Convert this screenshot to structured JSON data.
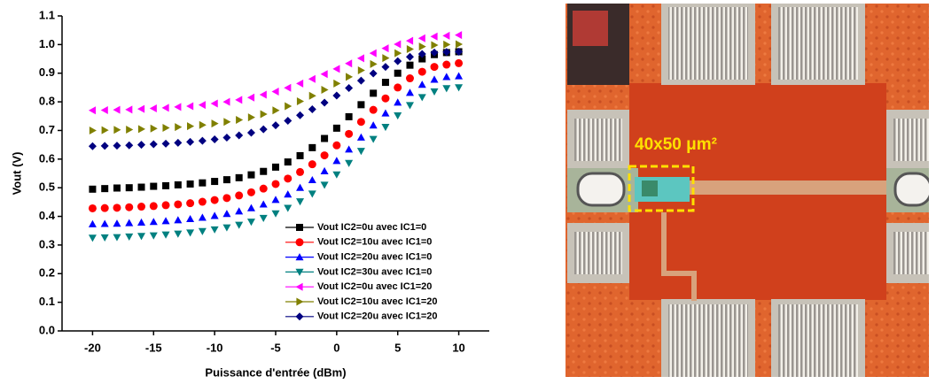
{
  "chart_data": {
    "type": "scatter",
    "xlabel": "Puissance d'entrée (dBm)",
    "ylabel": "Vout (V)",
    "x": [
      -20,
      -19,
      -18,
      -17,
      -16,
      -15,
      -14,
      -13,
      -12,
      -11,
      -10,
      -9,
      -8,
      -7,
      -6,
      -5,
      -4,
      -3,
      -2,
      -1,
      0,
      1,
      2,
      3,
      4,
      5,
      6,
      7,
      8,
      9,
      10
    ],
    "xlim": [
      -22.5,
      12.5
    ],
    "xticks": [
      -20,
      -15,
      -10,
      -5,
      0,
      5,
      10
    ],
    "ylim": [
      0,
      1.1
    ],
    "yticks": [
      {
        "value": 0,
        "label": "0.0"
      },
      0.1,
      0.2,
      0.3,
      0.4,
      0.5,
      0.6,
      0.7,
      0.8,
      0.9,
      {
        "value": 1,
        "label": "1.0"
      },
      1.1
    ],
    "legend": "lower-right",
    "series": [
      {
        "name": "Vout  IC2=0u avec IC1=0",
        "color": "#000000",
        "marker": "square",
        "values": [
          0.495,
          0.497,
          0.499,
          0.5,
          0.502,
          0.505,
          0.507,
          0.51,
          0.513,
          0.517,
          0.522,
          0.528,
          0.535,
          0.545,
          0.557,
          0.572,
          0.59,
          0.612,
          0.64,
          0.672,
          0.708,
          0.748,
          0.79,
          0.83,
          0.868,
          0.9,
          0.928,
          0.95,
          0.965,
          0.972,
          0.975
        ]
      },
      {
        "name": "Vout  IC2=10u avec IC1=0",
        "color": "#ff0000",
        "marker": "circle",
        "values": [
          0.428,
          0.429,
          0.43,
          0.432,
          0.434,
          0.436,
          0.439,
          0.442,
          0.446,
          0.451,
          0.457,
          0.464,
          0.473,
          0.484,
          0.497,
          0.513,
          0.532,
          0.555,
          0.582,
          0.613,
          0.648,
          0.688,
          0.73,
          0.772,
          0.812,
          0.85,
          0.882,
          0.905,
          0.922,
          0.93,
          0.935
        ]
      },
      {
        "name": "Vout  IC2=20u avec IC1=0",
        "color": "#0000ff",
        "marker": "triangle-up",
        "values": [
          0.373,
          0.374,
          0.375,
          0.377,
          0.379,
          0.381,
          0.384,
          0.387,
          0.391,
          0.396,
          0.402,
          0.409,
          0.418,
          0.429,
          0.442,
          0.458,
          0.477,
          0.5,
          0.527,
          0.558,
          0.594,
          0.634,
          0.676,
          0.718,
          0.76,
          0.798,
          0.832,
          0.86,
          0.878,
          0.887,
          0.89
        ]
      },
      {
        "name": "Vout  IC2=30u avec IC1=0",
        "color": "#008080",
        "marker": "triangle-down",
        "values": [
          0.325,
          0.326,
          0.327,
          0.329,
          0.331,
          0.333,
          0.336,
          0.339,
          0.343,
          0.348,
          0.354,
          0.361,
          0.37,
          0.381,
          0.394,
          0.41,
          0.429,
          0.452,
          0.479,
          0.51,
          0.546,
          0.586,
          0.628,
          0.67,
          0.712,
          0.752,
          0.788,
          0.816,
          0.836,
          0.847,
          0.85
        ]
      },
      {
        "name": "Vout  IC2=0u avec IC1=20",
        "color": "#ff00ff",
        "marker": "triangle-left",
        "values": [
          0.77,
          0.771,
          0.772,
          0.773,
          0.775,
          0.777,
          0.779,
          0.782,
          0.785,
          0.789,
          0.794,
          0.8,
          0.807,
          0.815,
          0.825,
          0.836,
          0.849,
          0.864,
          0.88,
          0.897,
          0.915,
          0.934,
          0.952,
          0.97,
          0.987,
          1.001,
          1.013,
          1.022,
          1.028,
          1.031,
          1.033
        ]
      },
      {
        "name": "Vout  IC2=10u avec IC1=20",
        "color": "#808000",
        "marker": "triangle-right",
        "values": [
          0.7,
          0.701,
          0.702,
          0.703,
          0.705,
          0.707,
          0.709,
          0.712,
          0.715,
          0.719,
          0.724,
          0.73,
          0.737,
          0.746,
          0.757,
          0.77,
          0.785,
          0.802,
          0.821,
          0.842,
          0.864,
          0.887,
          0.91,
          0.932,
          0.953,
          0.97,
          0.984,
          0.993,
          0.998,
          1.0,
          1.001
        ]
      },
      {
        "name": "Vout  IC2=20u avec IC1=20",
        "color": "#000080",
        "marker": "diamond",
        "values": [
          0.645,
          0.646,
          0.647,
          0.648,
          0.65,
          0.652,
          0.654,
          0.657,
          0.66,
          0.664,
          0.669,
          0.675,
          0.683,
          0.692,
          0.704,
          0.718,
          0.734,
          0.753,
          0.774,
          0.797,
          0.822,
          0.848,
          0.874,
          0.899,
          0.922,
          0.942,
          0.957,
          0.967,
          0.972,
          0.974,
          0.975
        ]
      }
    ]
  },
  "photo": {
    "annotation": "40x50  μm²"
  }
}
